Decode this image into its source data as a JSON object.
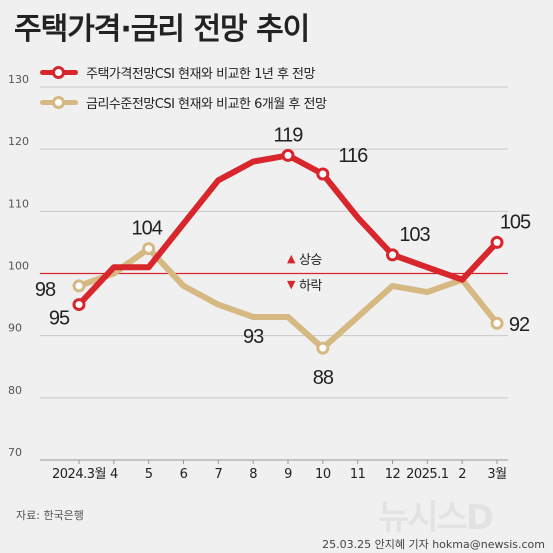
{
  "title": "주택가격·금리 전망 추이",
  "legend": [
    {
      "label": "주택가격전망CSI 현재와 비교한 1년 후 전망",
      "color": "#d8262d"
    },
    {
      "label": "금리수준전망CSI 현재와 비교한 6개월 후 전망",
      "color": "#d6b883"
    }
  ],
  "reference": {
    "value": 100,
    "up_label": "상승",
    "down_label": "하락",
    "up_icon": "triangle-up-icon",
    "down_icon": "triangle-down-icon"
  },
  "source": "자료: 한국은행",
  "credit": "25.03.25 안지혜 기자 hokma@newsis.com",
  "logo": "뉴시스D",
  "colors": {
    "housing": "#d8262d",
    "rate": "#d6b883",
    "reference": "#d8262d",
    "background": "#f0f0f0"
  },
  "chart_data": {
    "type": "line",
    "categories": [
      "2024.3월",
      "4",
      "5",
      "6",
      "7",
      "8",
      "9",
      "10",
      "11",
      "12",
      "2025.1",
      "2",
      "3월"
    ],
    "series": [
      {
        "name": "주택가격전망CSI 현재와 비교한 1년 후 전망",
        "values": [
          95,
          101,
          101,
          108,
          115,
          118,
          119,
          116,
          109,
          103,
          101,
          99,
          105
        ]
      },
      {
        "name": "금리수준전망CSI 현재와 비교한 6개월 후 전망",
        "values": [
          98,
          100,
          104,
          98,
          95,
          93,
          93,
          88,
          93,
          98,
          97,
          99,
          92
        ]
      }
    ],
    "data_labels": [
      {
        "series": 0,
        "index": 0,
        "text": "95"
      },
      {
        "series": 0,
        "index": 6,
        "text": "119"
      },
      {
        "series": 0,
        "index": 7,
        "text": "116"
      },
      {
        "series": 0,
        "index": 9,
        "text": "103"
      },
      {
        "series": 0,
        "index": 12,
        "text": "105"
      },
      {
        "series": 1,
        "index": 0,
        "text": "98"
      },
      {
        "series": 1,
        "index": 2,
        "text": "104"
      },
      {
        "series": 1,
        "index": 5,
        "text": "93"
      },
      {
        "series": 1,
        "index": 7,
        "text": "88"
      },
      {
        "series": 1,
        "index": 12,
        "text": "92"
      }
    ],
    "marked_points": [
      {
        "series": 0,
        "indices": [
          0,
          6,
          7,
          9,
          12
        ]
      },
      {
        "series": 1,
        "indices": [
          0,
          2,
          7,
          12
        ]
      }
    ],
    "yticks": [
      70,
      80,
      90,
      100,
      110,
      120,
      130
    ],
    "ylim": [
      70,
      130
    ],
    "grid": true
  }
}
